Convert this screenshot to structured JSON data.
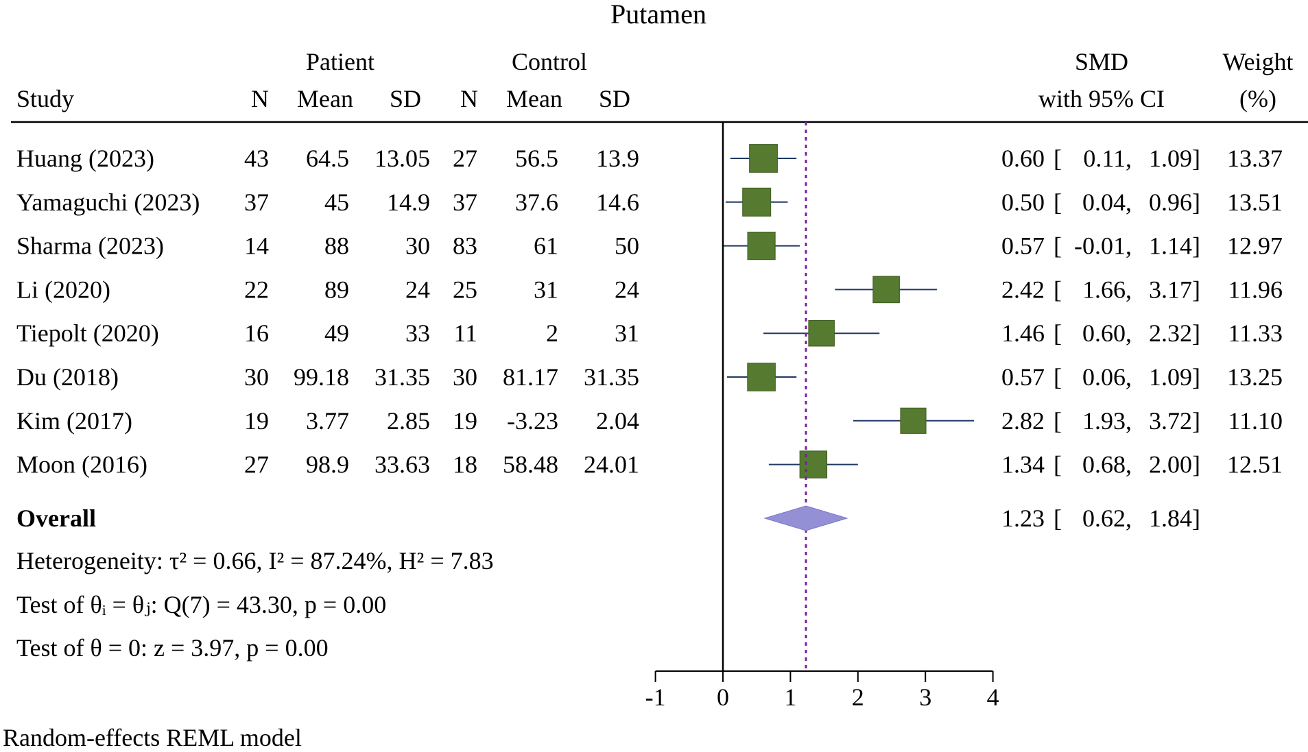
{
  "chart_data": {
    "type": "forest",
    "title": "Putamen",
    "group_headers": {
      "patient": "Patient",
      "control": "Control"
    },
    "columns": {
      "study": "Study",
      "n": "N",
      "mean": "Mean",
      "sd": "SD",
      "smd_line1": "SMD",
      "smd_line2": "with 95% CI",
      "weight_line1": "Weight",
      "weight_line2": "(%)"
    },
    "studies": [
      {
        "name": "Huang (2023)",
        "p_n": "43",
        "p_mean": "64.5",
        "p_sd": "13.05",
        "c_n": "27",
        "c_mean": "56.5",
        "c_sd": "13.9",
        "smd": 0.6,
        "lo": 0.11,
        "hi": 1.09,
        "smd_text": "0.60",
        "lo_text": "0.11,",
        "hi_text": "1.09",
        "weight": 13.37,
        "weight_text": "13.37"
      },
      {
        "name": "Yamaguchi (2023)",
        "p_n": "37",
        "p_mean": "45",
        "p_sd": "14.9",
        "c_n": "37",
        "c_mean": "37.6",
        "c_sd": "14.6",
        "smd": 0.5,
        "lo": 0.04,
        "hi": 0.96,
        "smd_text": "0.50",
        "lo_text": "0.04,",
        "hi_text": "0.96",
        "weight": 13.51,
        "weight_text": "13.51"
      },
      {
        "name": "Sharma (2023)",
        "p_n": "14",
        "p_mean": "88",
        "p_sd": "30",
        "c_n": "83",
        "c_mean": "61",
        "c_sd": "50",
        "smd": 0.57,
        "lo": -0.01,
        "hi": 1.14,
        "smd_text": "0.57",
        "lo_text": "-0.01,",
        "hi_text": "1.14",
        "weight": 12.97,
        "weight_text": "12.97"
      },
      {
        "name": "Li (2020)",
        "p_n": "22",
        "p_mean": "89",
        "p_sd": "24",
        "c_n": "25",
        "c_mean": "31",
        "c_sd": "24",
        "smd": 2.42,
        "lo": 1.66,
        "hi": 3.17,
        "smd_text": "2.42",
        "lo_text": "1.66,",
        "hi_text": "3.17",
        "weight": 11.96,
        "weight_text": "11.96"
      },
      {
        "name": "Tiepolt (2020)",
        "p_n": "16",
        "p_mean": "49",
        "p_sd": "33",
        "c_n": "11",
        "c_mean": "2",
        "c_sd": "31",
        "smd": 1.46,
        "lo": 0.6,
        "hi": 2.32,
        "smd_text": "1.46",
        "lo_text": "0.60,",
        "hi_text": "2.32",
        "weight": 11.33,
        "weight_text": "11.33"
      },
      {
        "name": "Du (2018)",
        "p_n": "30",
        "p_mean": "99.18",
        "p_sd": "31.35",
        "c_n": "30",
        "c_mean": "81.17",
        "c_sd": "31.35",
        "smd": 0.57,
        "lo": 0.06,
        "hi": 1.09,
        "smd_text": "0.57",
        "lo_text": "0.06,",
        "hi_text": "1.09",
        "weight": 13.25,
        "weight_text": "13.25"
      },
      {
        "name": "Kim (2017)",
        "p_n": "19",
        "p_mean": "3.77",
        "p_sd": "2.85",
        "c_n": "19",
        "c_mean": "-3.23",
        "c_sd": "2.04",
        "smd": 2.82,
        "lo": 1.93,
        "hi": 3.72,
        "smd_text": "2.82",
        "lo_text": "1.93,",
        "hi_text": "3.72",
        "weight": 11.1,
        "weight_text": "11.10"
      },
      {
        "name": "Moon (2016)",
        "p_n": "27",
        "p_mean": "98.9",
        "p_sd": "33.63",
        "c_n": "18",
        "c_mean": "58.48",
        "c_sd": "24.01",
        "smd": 1.34,
        "lo": 0.68,
        "hi": 2.0,
        "smd_text": "1.34",
        "lo_text": "0.68,",
        "hi_text": "2.00",
        "weight": 12.51,
        "weight_text": "12.51"
      }
    ],
    "overall": {
      "label": "Overall",
      "smd": 1.23,
      "lo": 0.62,
      "hi": 1.84,
      "smd_text": "1.23",
      "lo_text": "0.62,",
      "hi_text": "1.84"
    },
    "stats": {
      "heterogeneity": "Heterogeneity: τ² = 0.66, I² = 87.24%, H² = 7.83",
      "test_equal": "Test of θᵢ = θⱼ: Q(7) = 43.30, p = 0.00",
      "test_zero": "Test of θ = 0: z = 3.97, p = 0.00"
    },
    "x_axis": {
      "range": [
        -1,
        4
      ],
      "ticks": [
        -1,
        0,
        1,
        2,
        3,
        4
      ],
      "tick_labels": [
        "-1",
        "0",
        "1",
        "2",
        "3",
        "4"
      ]
    },
    "null_line": 0,
    "footnote": "Random-effects REML model",
    "colors": {
      "square": "#557a30",
      "square_stroke": "#3f5c22",
      "ci_line": "#1f3864",
      "diamond": "#9390d6",
      "diamond_stroke": "#7c78c6",
      "overall_line": "#7b1fa2",
      "axis": "#000000"
    }
  }
}
